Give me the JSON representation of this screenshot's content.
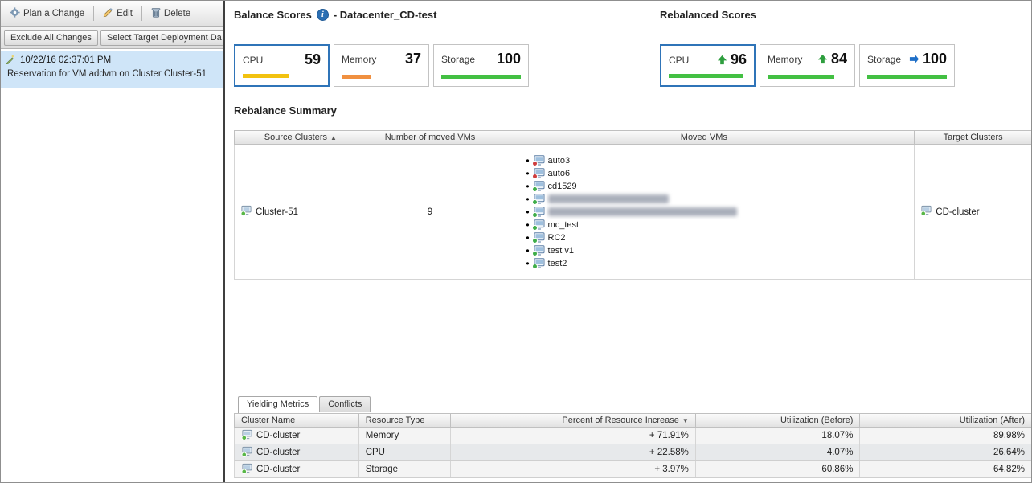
{
  "sidebar": {
    "toolbar": {
      "plan_label": "Plan a Change",
      "edit_label": "Edit",
      "delete_label": "Delete"
    },
    "actions": {
      "exclude_label": "Exclude All Changes",
      "select_target_label": "Select Target Deployment Da"
    },
    "selected_change": {
      "timestamp": "10/22/16 02:37:01 PM",
      "description": "Reservation for VM addvm on Cluster Cluster-51"
    }
  },
  "header": {
    "balance_title": "Balance Scores",
    "datacenter_label": "- Datacenter_CD-test",
    "rebalanced_title": "Rebalanced Scores"
  },
  "scores": {
    "balance": [
      {
        "label": "CPU",
        "value": 59,
        "color": "#f2c20f",
        "selected": true
      },
      {
        "label": "Memory",
        "value": 37,
        "color": "#f09040",
        "selected": false
      },
      {
        "label": "Storage",
        "value": 100,
        "color": "#43c043",
        "selected": false
      }
    ],
    "rebalanced": [
      {
        "label": "CPU",
        "value": 96,
        "color": "#43c043",
        "trend": "up",
        "selected": true
      },
      {
        "label": "Memory",
        "value": 84,
        "color": "#43c043",
        "trend": "up",
        "selected": false
      },
      {
        "label": "Storage",
        "value": 100,
        "color": "#43c043",
        "trend": "right",
        "selected": false
      }
    ],
    "trend_up_color": "#2e9e3e",
    "trend_right_color": "#1e6fc8"
  },
  "summary": {
    "title": "Rebalance Summary",
    "headers": [
      "Source Clusters",
      "Number of moved VMs",
      "Moved VMs",
      "Target Clusters"
    ],
    "source_cluster": "Cluster-51",
    "moved_count": "9",
    "target_cluster": "CD-cluster",
    "moved_vms": [
      {
        "label": "auto3",
        "status": "red",
        "redacted": false
      },
      {
        "label": "auto6",
        "status": "red",
        "redacted": false
      },
      {
        "label": "cd1529",
        "status": "green",
        "redacted": false
      },
      {
        "label": "",
        "status": "green",
        "redacted": true
      },
      {
        "label": "",
        "status": "green",
        "redacted": true
      },
      {
        "label": "mc_test",
        "status": "green",
        "redacted": false
      },
      {
        "label": "RC2",
        "status": "green",
        "redacted": false
      },
      {
        "label": "test v1",
        "status": "green",
        "redacted": false
      },
      {
        "label": "test2",
        "status": "green",
        "redacted": false
      }
    ]
  },
  "metrics": {
    "tabs": [
      {
        "label": "Yielding Metrics",
        "active": true
      },
      {
        "label": "Conflicts",
        "active": false
      }
    ],
    "headers": [
      "Cluster Name",
      "Resource Type",
      "Percent of Resource Increase",
      "Utilization (Before)",
      "Utilization (After)"
    ],
    "rows": [
      {
        "cluster": "CD-cluster",
        "resource": "Memory",
        "increase": "+ 71.91%",
        "before": "18.07%",
        "after": "89.98%"
      },
      {
        "cluster": "CD-cluster",
        "resource": "CPU",
        "increase": "+ 22.58%",
        "before": "4.07%",
        "after": "26.64%"
      },
      {
        "cluster": "CD-cluster",
        "resource": "Storage",
        "increase": "+ 3.97%",
        "before": "60.86%",
        "after": "64.82%"
      }
    ]
  },
  "icons": {
    "sort_asc": "▲",
    "sort_desc": "▼",
    "info": "i"
  }
}
